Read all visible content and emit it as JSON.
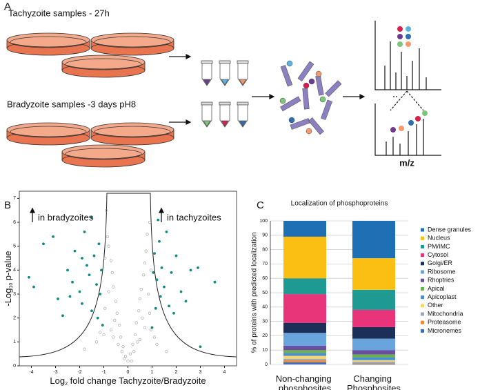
{
  "panel_labels": [
    "A",
    "B",
    "C"
  ],
  "workflow": {
    "tachyzoite_label": "Tachyzoite samples - 27h",
    "bradyzoite_label": "Bradyzoite samples -3 days pH8",
    "ms_axis_label": "m/z"
  },
  "chart_data": [
    {
      "type": "scatter",
      "x_label": [
        "Log",
        "2",
        " fold change Tachyzoite/Bradyzoite"
      ],
      "y_label": [
        "-Log",
        "10",
        " p-value"
      ],
      "annotations": [
        "in bradyzoites",
        "in tachyzoites"
      ],
      "xlim": [
        -4.5,
        4.5
      ],
      "xticks": [
        -4,
        -3,
        -2,
        -1,
        0,
        1,
        2,
        3,
        4
      ],
      "ylim": [
        0,
        7.3
      ],
      "yticks": [
        0,
        1,
        2,
        3,
        4,
        5,
        6,
        7
      ],
      "series": [
        {
          "color": "#9a9a9a",
          "x": [
            0,
            0.1,
            -0.1,
            0.2,
            -0.2,
            0.3,
            -0.3,
            0.35,
            -0.35,
            0.45,
            -0.45,
            0.5,
            -0.5,
            0.55,
            -0.6,
            0.65,
            -0.65,
            0.7,
            -0.7,
            0.75,
            -0.8,
            0.8,
            -0.85,
            0.6,
            -0.55,
            0.4,
            -0.4,
            0.9,
            -0.9,
            0.85,
            -0.8,
            0.9,
            -0.95,
            0.95,
            -1.0,
            1.2,
            -1.3,
            1.6,
            -1.8,
            0.15,
            -0.15,
            0.25,
            -0.25,
            1.1,
            -1.15,
            0.7,
            -0.7,
            0.5,
            -0.6,
            0.95,
            -0.95
          ],
          "y": [
            0.2,
            0.5,
            0.4,
            0.9,
            0.8,
            1.3,
            1.2,
            1.8,
            1.7,
            2.3,
            2.2,
            2.8,
            2.7,
            3.2,
            3.3,
            3.8,
            3.9,
            4.3,
            4.4,
            4.8,
            5.0,
            5.5,
            5.4,
            2.0,
            1.9,
            1.0,
            0.9,
            6.0,
            6.5,
            3.0,
            3.1,
            2.2,
            2.4,
            1.5,
            1.3,
            0.9,
            1.0,
            0.6,
            0.7,
            0.2,
            0.3,
            0.6,
            0.6,
            1.2,
            1.4,
            1.6,
            1.5,
            1.1,
            1.2,
            4.0,
            4.5
          ]
        },
        {
          "color": "#0e8a7e",
          "x": [
            -4.1,
            -3.9,
            -3.5,
            -3.1,
            -2.9,
            -2.7,
            -2.5,
            -2.3,
            -2.2,
            -2.0,
            -1.9,
            -1.8,
            -1.7,
            -1.6,
            -1.5,
            -1.4,
            -1.3,
            -1.25,
            -1.2,
            -1.15,
            -1.1,
            -1.05,
            -1.5,
            -2.4,
            -1.9,
            1.0,
            1.05,
            1.1,
            1.15,
            1.2,
            1.3,
            1.35,
            1.4,
            1.5,
            1.6,
            1.7,
            1.8,
            2.0,
            2.2,
            2.4,
            2.6,
            2.9,
            3.0,
            3.6,
            1.25,
            1.9
          ],
          "y": [
            3.7,
            3.3,
            5.1,
            5.4,
            2.8,
            2.1,
            4.0,
            3.5,
            4.8,
            3.1,
            2.6,
            5.6,
            4.2,
            3.8,
            2.3,
            4.6,
            3.4,
            2.0,
            5.1,
            3.0,
            4.0,
            1.7,
            6.2,
            2.9,
            4.5,
            1.6,
            3.9,
            4.7,
            2.4,
            3.6,
            5.2,
            2.9,
            4.1,
            3.3,
            5.6,
            2.5,
            3.9,
            4.6,
            3.1,
            2.7,
            4.0,
            4.1,
            0.8,
            3.5,
            6.1,
            2.2
          ]
        }
      ]
    },
    {
      "type": "stacked_bar",
      "title": "Localization of phosphoproteins",
      "y_label": "% of proteins with predicted localization",
      "categories": [
        "Non-changing phosphosites",
        "Changing Phosphosites"
      ],
      "ylim": [
        0,
        100
      ],
      "yticks": [
        0,
        10,
        20,
        30,
        40,
        50,
        60,
        70,
        80,
        90,
        100
      ],
      "grid": true,
      "series": [
        {
          "name": "Dense granules",
          "color": "#1f6fb5",
          "values": [
            11,
            26
          ]
        },
        {
          "name": "Nucleus",
          "color": "#fbbf13",
          "values": [
            29,
            22
          ]
        },
        {
          "name": "PM/IMC",
          "color": "#1e9a93",
          "values": [
            11,
            14
          ]
        },
        {
          "name": "Cytosol",
          "color": "#e8357a",
          "values": [
            20,
            12
          ]
        },
        {
          "name": "Golgi/ER",
          "color": "#1b2f59",
          "values": [
            7,
            8
          ]
        },
        {
          "name": "Ribosome",
          "color": "#6aa4dc",
          "values": [
            9,
            8
          ]
        },
        {
          "name": "Rhoptries",
          "color": "#6a4ea1",
          "values": [
            3,
            3
          ]
        },
        {
          "name": "Apical",
          "color": "#6ab04c",
          "values": [
            2,
            2
          ]
        },
        {
          "name": "Apicoplast",
          "color": "#4a8fd0",
          "values": [
            2,
            2
          ]
        },
        {
          "name": "Other",
          "color": "#f5d76e",
          "values": [
            2,
            1
          ]
        },
        {
          "name": "Mitochondria",
          "color": "#9aa7b8",
          "values": [
            1,
            1
          ]
        },
        {
          "name": "Proteasome",
          "color": "#f08a3a",
          "values": [
            1.5,
            0.5
          ]
        },
        {
          "name": "Micronemes",
          "color": "#3b6fb5",
          "values": [
            1.5,
            0.5
          ]
        }
      ]
    }
  ]
}
